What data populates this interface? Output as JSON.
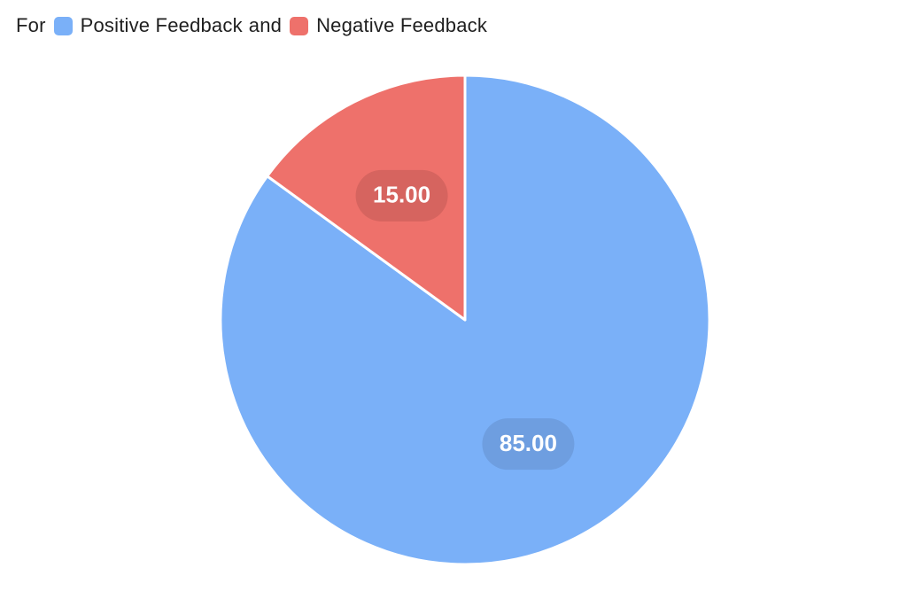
{
  "legend": {
    "prefix": "For",
    "connector": "and"
  },
  "chart_data": {
    "type": "pie",
    "categories": [
      "Positive Feedback",
      "Negative Feedback"
    ],
    "values": [
      85.0,
      15.0
    ],
    "value_labels": [
      "85.00",
      "15.00"
    ],
    "colors": [
      "#7ab0f8",
      "#ee716b"
    ],
    "label_bg_colors": [
      "#6e9ee0",
      "#d6645f"
    ],
    "start_angle_deg": 0,
    "direction": "clockwise",
    "slice_border_color": "#ffffff"
  }
}
